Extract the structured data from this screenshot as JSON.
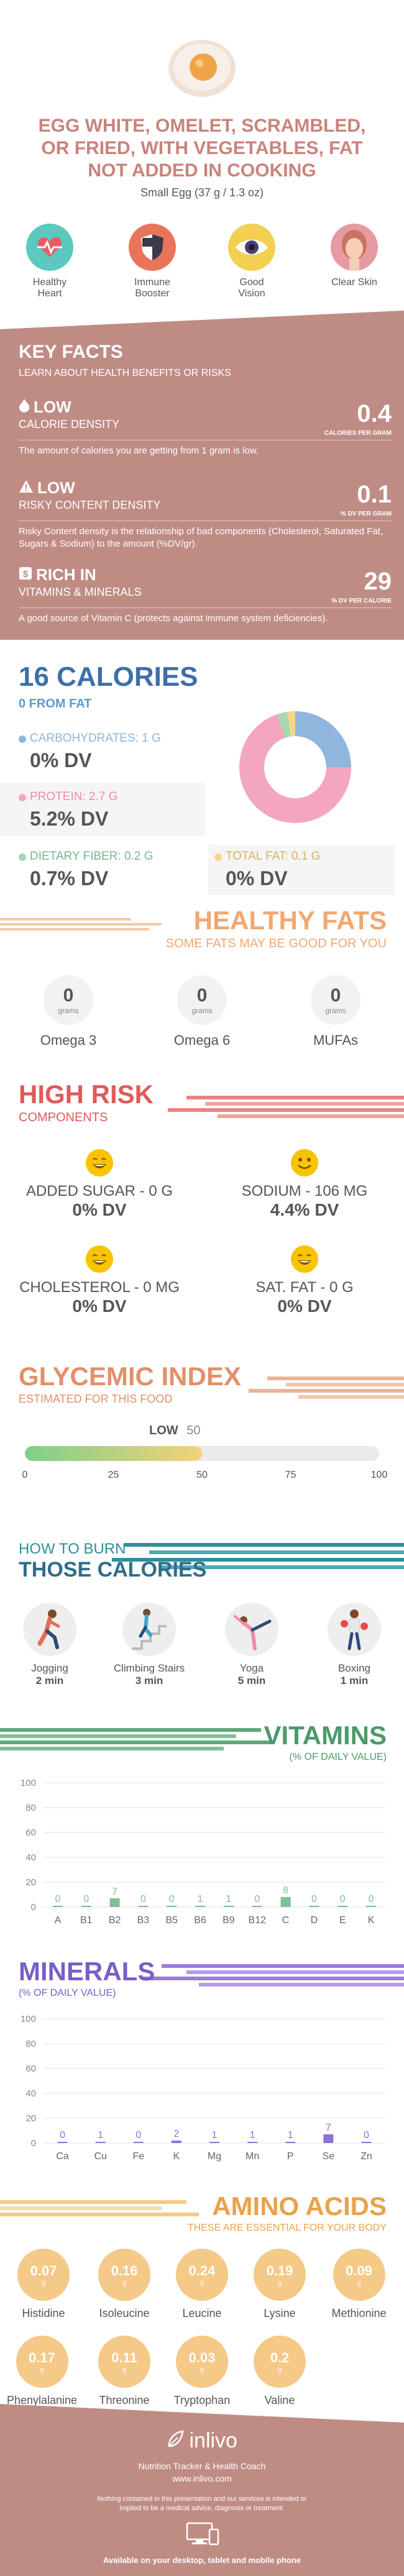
{
  "header": {
    "title": "EGG WHITE, OMELET, SCRAMBLED, OR FRIED, WITH VEGETABLES, FAT NOT ADDED IN COOKING",
    "serving": "Small Egg (37 g / 1.3 oz)"
  },
  "benefits": [
    {
      "label": "Healthy Heart",
      "icon": "heart-icon",
      "color": "#5cc8c0"
    },
    {
      "label": "Immune Booster",
      "icon": "shield-icon",
      "color": "#e8755a"
    },
    {
      "label": "Good Vision",
      "icon": "eye-icon",
      "color": "#f3cf52"
    },
    {
      "label": "Clear Skin",
      "icon": "face-icon",
      "color": "#e69aa2"
    }
  ],
  "key_facts": {
    "title": "KEY FACTS",
    "subtitle": "LEARN ABOUT HEALTH BENEFITS OR RISKS",
    "items": [
      {
        "badge": "LOW",
        "label": "CALORIE DENSITY",
        "value": "0.4",
        "unit": "CALORIES PER GRAM",
        "desc": "The amount of calories you are getting from 1 gram is low."
      },
      {
        "badge": "LOW",
        "label": "RISKY CONTENT DENSITY",
        "value": "0.1",
        "unit": "% DV PER GRAM",
        "desc": "Risky Content density is the relationship of bad components (Cholesterol, Saturated Fat, Sugars & Sodium) to the amount (%DV/gr)."
      },
      {
        "badge": "RICH IN",
        "label": "VITAMINS & MINERALS",
        "value": "29",
        "unit": "% DV PER CALORIE",
        "desc": "A good source of Vitamin C (protects against immune system deficiencies)."
      }
    ]
  },
  "calories": {
    "title": "16 CALORIES",
    "subtitle": "0 FROM FAT",
    "carbs_label": "CARBOHYDRATES: 1 g",
    "carbs_value": "0% DV",
    "protein_label": "PROTEIN: 2.7 g",
    "protein_value": "5.2% DV",
    "fiber_label": "DIETARY FIBER: 0.2 g",
    "fiber_value": "0.7% DV",
    "fat_label": "TOTAL FAT: 0.1 g",
    "fat_value": "0% DV",
    "colors": {
      "carbs": "#8fb6dc",
      "protein": "#f4a6c0",
      "fiber": "#a9d6b3",
      "fat": "#f6d68a"
    }
  },
  "healthy_fats": {
    "title": "HEALTHY FATS",
    "subtitle": "SOME FATS MAY BE GOOD FOR YOU",
    "items": [
      {
        "value": "0",
        "unit": "grams",
        "name": "Omega 3"
      },
      {
        "value": "0",
        "unit": "grams",
        "name": "Omega 6"
      },
      {
        "value": "0",
        "unit": "grams",
        "name": "MUFAs"
      }
    ]
  },
  "high_risk": {
    "title": "HIGH RISK",
    "subtitle": "COMPONENTS",
    "items": [
      {
        "label": "ADDED SUGAR - 0 g",
        "value": "0% DV",
        "mood": "laugh"
      },
      {
        "label": "SODIUM - 106 mg",
        "value": "4.4% DV",
        "mood": "smile"
      },
      {
        "label": "CHOLESTEROL - 0 mg",
        "value": "0% DV",
        "mood": "laugh"
      },
      {
        "label": "SAT. FAT - 0 g",
        "value": "0% DV",
        "mood": "laugh"
      }
    ]
  },
  "glycemic": {
    "title": "GLYCEMIC INDEX",
    "subtitle": "ESTIMATED FOR THIS FOOD",
    "level": "LOW",
    "value": "50",
    "ticks": [
      "0",
      "25",
      "50",
      "75",
      "100"
    ],
    "fill_percent": 50
  },
  "burn": {
    "title_top": "HOW TO BURN",
    "title_bottom": "THOSE CALORIES",
    "items": [
      {
        "name": "Jogging",
        "time": "2 min"
      },
      {
        "name": "Climbing Stairs",
        "time": "3 min"
      },
      {
        "name": "Yoga",
        "time": "5 min"
      },
      {
        "name": "Boxing",
        "time": "1 min"
      }
    ]
  },
  "vitamins": {
    "title": "VITAMINS",
    "subtitle": "(% OF DAILY VALUE)",
    "y_ticks": [
      "100",
      "80",
      "60",
      "40",
      "20",
      "0"
    ],
    "bar_color": "#7fbf95",
    "chart_data": {
      "type": "bar",
      "categories": [
        "A",
        "B1",
        "B2",
        "B3",
        "B5",
        "B6",
        "B9",
        "B12",
        "C",
        "D",
        "E",
        "K"
      ],
      "values": [
        0,
        0,
        7,
        0,
        0,
        1,
        1,
        0,
        8,
        0,
        0,
        0
      ],
      "labels": [
        "0",
        "0",
        "7",
        "0",
        "0",
        "1",
        "1",
        "0",
        "8",
        "0",
        "0",
        "0"
      ],
      "ylim": [
        0,
        100
      ]
    }
  },
  "minerals": {
    "title": "MINERALS",
    "subtitle": "(% OF DAILY VALUE)",
    "y_ticks": [
      "100",
      "80",
      "60",
      "40",
      "20",
      "0"
    ],
    "bar_color": "#8c72d9",
    "chart_data": {
      "type": "bar",
      "categories": [
        "Ca",
        "Cu",
        "Fe",
        "K",
        "Mg",
        "Mn",
        "P",
        "Se",
        "Zn"
      ],
      "values": [
        0,
        1,
        0,
        2,
        1,
        1,
        1,
        7,
        0
      ],
      "labels": [
        "0",
        "1",
        "0",
        "2",
        "1",
        "1",
        "1",
        "7",
        "0"
      ],
      "ylim": [
        0,
        100
      ]
    }
  },
  "amino": {
    "title": "AMINO ACIDS",
    "subtitle": "THESE ARE ESSENTIAL FOR YOUR BODY",
    "unit": "g",
    "items": [
      {
        "value": "0.07",
        "name": "Histidine"
      },
      {
        "value": "0.16",
        "name": "Isoleucine"
      },
      {
        "value": "0.24",
        "name": "Leucine"
      },
      {
        "value": "0.19",
        "name": "Lysine"
      },
      {
        "value": "0.09",
        "name": "Methionine"
      },
      {
        "value": "0.17",
        "name": "Phenylalanine"
      },
      {
        "value": "0.11",
        "name": "Threonine"
      },
      {
        "value": "0.03",
        "name": "Tryptophan"
      },
      {
        "value": "0.2",
        "name": "Valine"
      }
    ]
  },
  "footer": {
    "brand": "inlivo",
    "tagline": "Nutrition Tracker & Health Coach",
    "url": "www.inlivo.com",
    "disclaimer": "Nothing contained in this presentation and our services is intended or implied to be a medical advice, diagnosis or treatment.",
    "available": "Available on your desktop, tablet and mobile phone"
  }
}
